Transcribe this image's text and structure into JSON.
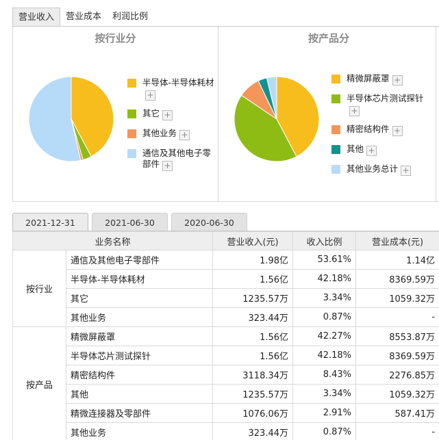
{
  "top_tabs": [
    {
      "label": "营业收入",
      "active": true
    },
    {
      "label": "营业成本",
      "active": false
    },
    {
      "label": "利润比例",
      "active": false
    }
  ],
  "chart_data": [
    {
      "type": "pie",
      "title": "按行业分",
      "slices": [
        {
          "label": "半导体-半导体耗材",
          "value": 42.18,
          "color": "#f6bd1c"
        },
        {
          "label": "其它",
          "value": 3.34,
          "color": "#8ebc15"
        },
        {
          "label": "其他业务",
          "value": 0.87,
          "color": "#f4955a"
        },
        {
          "label": "通信及其他电子零部件",
          "value": 53.61,
          "color": "#b6dbf8"
        }
      ]
    },
    {
      "type": "pie",
      "title": "按产品分",
      "slices": [
        {
          "label": "精微屏蔽罩",
          "value": 42.27,
          "color": "#f6bd1c"
        },
        {
          "label": "半导体芯片测试探针",
          "value": 42.18,
          "color": "#8ebc15"
        },
        {
          "label": "精密结构件",
          "value": 8.43,
          "color": "#f4955a"
        },
        {
          "label": "其他",
          "value": 3.34,
          "color": "#14918e"
        },
        {
          "label": "其他业务总计",
          "value": 3.78,
          "color": "#b6dbf8"
        }
      ]
    }
  ],
  "date_tabs": [
    {
      "label": "2021-12-31",
      "active": true
    },
    {
      "label": "2021-06-30",
      "active": false
    },
    {
      "label": "2020-06-30",
      "active": false
    }
  ],
  "table": {
    "headers": [
      "业务名称",
      "营业收入(元)",
      "收入比例",
      "营业成本(元)"
    ],
    "groups": [
      {
        "name": "按行业",
        "rows": [
          {
            "name": "通信及其他电子零部件",
            "revenue": "1.98亿",
            "ratio": "53.61%",
            "cost": "1.14亿"
          },
          {
            "name": "半导体-半导体耗材",
            "revenue": "1.56亿",
            "ratio": "42.18%",
            "cost": "8369.59万"
          },
          {
            "name": "其它",
            "revenue": "1235.57万",
            "ratio": "3.34%",
            "cost": "1059.32万"
          },
          {
            "name": "其他业务",
            "revenue": "323.44万",
            "ratio": "0.87%",
            "cost": "-"
          }
        ]
      },
      {
        "name": "按产品",
        "rows": [
          {
            "name": "精微屏蔽罩",
            "revenue": "1.56亿",
            "ratio": "42.27%",
            "cost": "8553.87万"
          },
          {
            "name": "半导体芯片测试探针",
            "revenue": "1.56亿",
            "ratio": "42.18%",
            "cost": "8369.59万"
          },
          {
            "name": "精密结构件",
            "revenue": "3118.34万",
            "ratio": "8.43%",
            "cost": "2276.85万"
          },
          {
            "name": "其他",
            "revenue": "1235.57万",
            "ratio": "3.34%",
            "cost": "1059.32万"
          },
          {
            "name": "精微连接器及零部件",
            "revenue": "1076.06万",
            "ratio": "2.91%",
            "cost": "587.41万"
          },
          {
            "name": "其他业务",
            "revenue": "323.44万",
            "ratio": "0.87%",
            "cost": "-"
          }
        ]
      }
    ]
  }
}
